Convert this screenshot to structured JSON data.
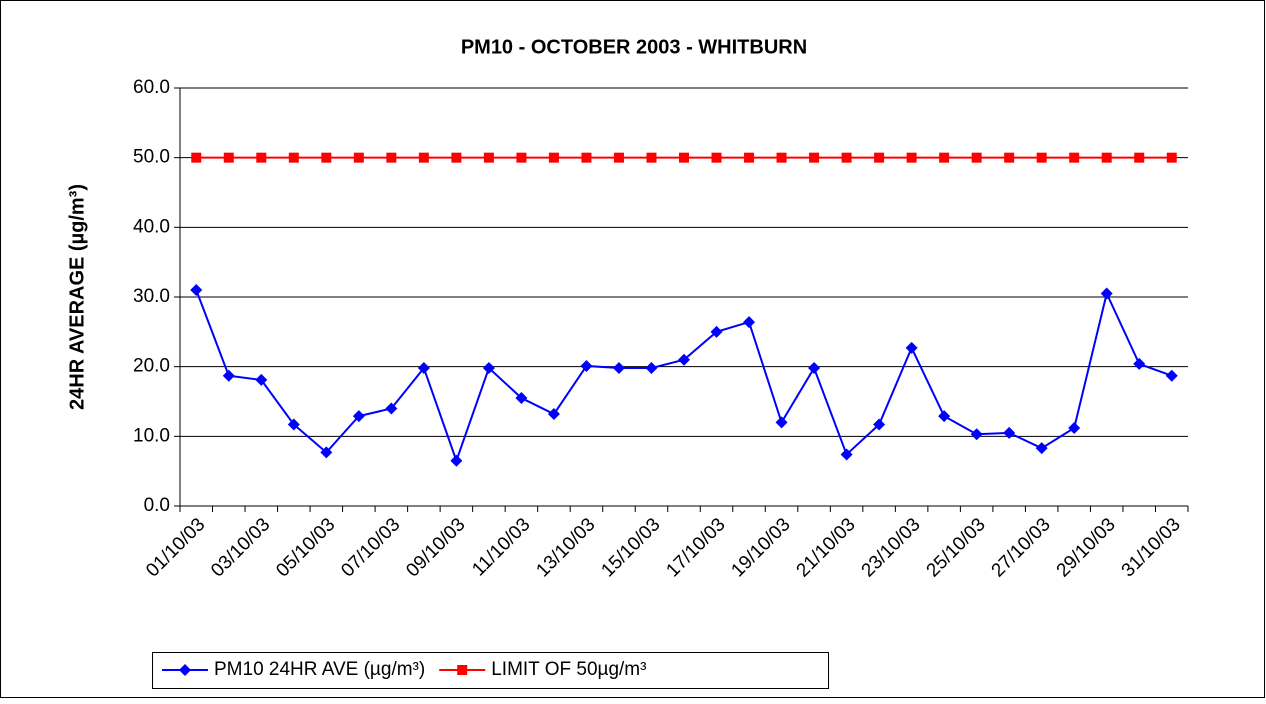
{
  "chart_data": {
    "type": "line",
    "title": "PM10 - OCTOBER 2003 - WHITBURN",
    "y_label": "24HR AVERAGE (µg/m³)",
    "categories": [
      "01/10/03",
      null,
      "03/10/03",
      null,
      "05/10/03",
      null,
      "07/10/03",
      null,
      "09/10/03",
      null,
      "11/10/03",
      null,
      "13/10/03",
      null,
      "15/10/03",
      null,
      "17/10/03",
      null,
      "19/10/03",
      null,
      "21/10/03",
      null,
      "23/10/03",
      null,
      "25/10/03",
      null,
      "27/10/03",
      null,
      "29/10/03",
      null,
      "31/10/03"
    ],
    "series": [
      {
        "name": "PM10 24HR AVE (µg/m³)",
        "color": "#0000ff",
        "marker": "diamond",
        "values": [
          31.0,
          18.7,
          18.1,
          11.7,
          7.7,
          12.9,
          14.0,
          19.8,
          6.5,
          19.8,
          15.5,
          13.2,
          20.1,
          19.8,
          19.8,
          21.0,
          25.0,
          26.4,
          12.0,
          19.8,
          7.4,
          11.7,
          22.7,
          12.9,
          10.3,
          10.5,
          8.3,
          11.2,
          30.5,
          20.4,
          18.7
        ]
      },
      {
        "name": "LIMIT OF 50µg/m³",
        "color": "#ff0000",
        "marker": "square",
        "values": [
          50,
          50,
          50,
          50,
          50,
          50,
          50,
          50,
          50,
          50,
          50,
          50,
          50,
          50,
          50,
          50,
          50,
          50,
          50,
          50,
          50,
          50,
          50,
          50,
          50,
          50,
          50,
          50,
          50,
          50,
          50
        ]
      }
    ],
    "ylim": [
      0,
      60
    ],
    "yticks": [
      {
        "value": 0,
        "label": "0.0"
      },
      {
        "value": 10,
        "label": "10.0"
      },
      {
        "value": 20,
        "label": "20.0"
      },
      {
        "value": 30,
        "label": "30.0"
      },
      {
        "value": 40,
        "label": "40.0"
      },
      {
        "value": 50,
        "label": "50.0"
      },
      {
        "value": 60,
        "label": "60.0"
      }
    ],
    "grid": true,
    "legend": "bottom"
  }
}
